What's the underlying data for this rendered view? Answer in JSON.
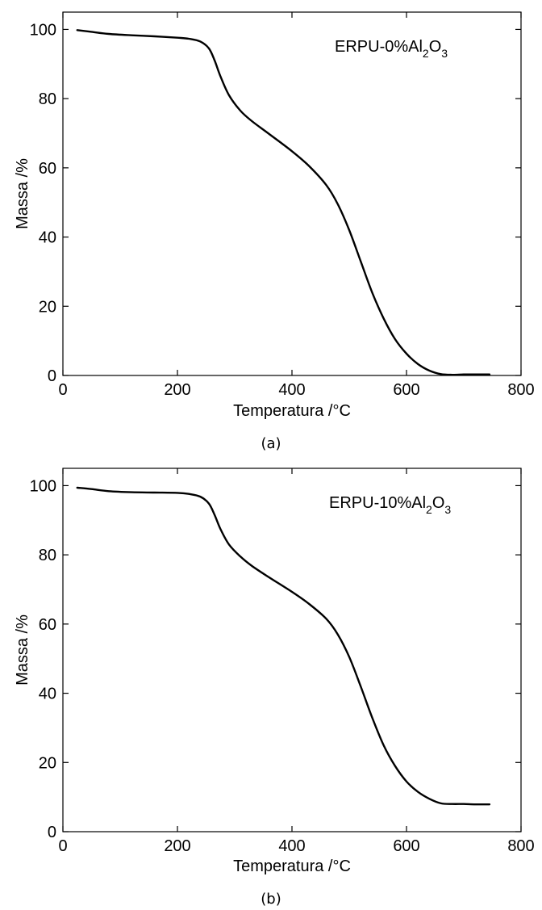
{
  "chart_data": [
    {
      "type": "line",
      "caption": "(a)",
      "annotation": {
        "base": "ERPU-0%Al",
        "sub1": "2",
        "mid": "O",
        "sub2": "3"
      },
      "xlabel": "Temperatura /°C",
      "ylabel": "Massa /%",
      "xlim": [
        0,
        800
      ],
      "ylim": [
        0,
        105
      ],
      "xticks": [
        "0",
        "200",
        "400",
        "600",
        "800"
      ],
      "yticks": [
        "0",
        "20",
        "40",
        "60",
        "80",
        "100"
      ],
      "grid": false,
      "series": [
        {
          "x": [
            25,
            50,
            80,
            120,
            160,
            200,
            220,
            240,
            255,
            265,
            275,
            290,
            310,
            330,
            360,
            400,
            430,
            460,
            480,
            500,
            520,
            540,
            560,
            580,
            600,
            620,
            640,
            660,
            680,
            700,
            720,
            745
          ],
          "y": [
            99.8,
            99.3,
            98.7,
            98.3,
            98.0,
            97.6,
            97.3,
            96.5,
            94.5,
            91,
            86.5,
            81,
            76.5,
            73.5,
            69.8,
            64.8,
            60.5,
            55.0,
            49.5,
            42.0,
            33.0,
            24.0,
            16.5,
            10.5,
            6.3,
            3.3,
            1.4,
            0.4,
            0.2,
            0.3,
            0.3,
            0.3
          ]
        }
      ]
    },
    {
      "type": "line",
      "caption": "(b)",
      "annotation": {
        "base": "ERPU-10%Al",
        "sub1": "2",
        "mid": "O",
        "sub2": "3"
      },
      "xlabel": "Temperatura /°C",
      "ylabel": "Massa /%",
      "xlim": [
        0,
        800
      ],
      "ylim": [
        0,
        105
      ],
      "xticks": [
        "0",
        "200",
        "400",
        "600",
        "800"
      ],
      "yticks": [
        "0",
        "20",
        "40",
        "60",
        "80",
        "100"
      ],
      "grid": false,
      "series": [
        {
          "x": [
            25,
            50,
            80,
            120,
            160,
            200,
            220,
            240,
            255,
            265,
            275,
            290,
            310,
            330,
            360,
            400,
            430,
            460,
            480,
            500,
            520,
            540,
            560,
            580,
            600,
            620,
            640,
            660,
            680,
            700,
            720,
            745
          ],
          "y": [
            99.4,
            99.0,
            98.4,
            98.1,
            98.0,
            97.9,
            97.6,
            96.8,
            94.8,
            91.5,
            87.5,
            83.0,
            79.5,
            76.8,
            73.5,
            69.3,
            65.8,
            61.5,
            57.0,
            50.5,
            42.0,
            33.0,
            25.0,
            19.0,
            14.5,
            11.5,
            9.5,
            8.2,
            8.0,
            8.0,
            7.9,
            7.9
          ]
        }
      ]
    }
  ]
}
